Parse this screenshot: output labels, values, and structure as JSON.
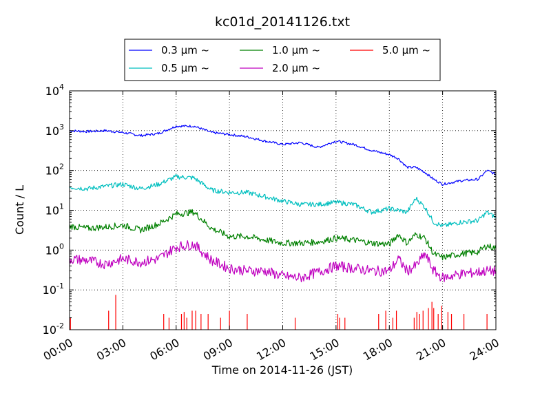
{
  "chart_data": {
    "type": "line",
    "title": "kc01d_20141126.txt",
    "xlabel": "Time on 2014-11-26 (JST)",
    "ylabel": "Count / L",
    "y_scale": "log",
    "ylim": [
      0.01,
      10000
    ],
    "xlim": [
      "00:00",
      "24:00"
    ],
    "grid": true,
    "legend_position": "top-center",
    "x_tick_labels": [
      "00:00",
      "03:00",
      "06:00",
      "09:00",
      "12:00",
      "15:00",
      "18:00",
      "21:00",
      "24:00"
    ],
    "y_tick_labels": [
      {
        "base": "10",
        "exp": "-2"
      },
      {
        "base": "10",
        "exp": "-1"
      },
      {
        "base": "10",
        "exp": "0"
      },
      {
        "base": "10",
        "exp": "1"
      },
      {
        "base": "10",
        "exp": "2"
      },
      {
        "base": "10",
        "exp": "3"
      },
      {
        "base": "10",
        "exp": "4"
      }
    ],
    "x_hours": [
      0,
      1,
      2,
      3,
      4,
      5,
      6,
      7,
      8,
      9,
      10,
      11,
      12,
      13,
      14,
      15,
      16,
      17,
      18,
      18.5,
      19,
      19.5,
      20,
      20.5,
      21,
      22,
      23,
      23.5,
      24
    ],
    "series": [
      {
        "name": "0.3 μm ~",
        "color": "#0000ff",
        "values": [
          1000,
          950,
          1000,
          900,
          750,
          850,
          1300,
          1300,
          900,
          800,
          700,
          550,
          450,
          500,
          380,
          550,
          450,
          320,
          250,
          200,
          120,
          120,
          90,
          60,
          45,
          55,
          60,
          100,
          80
        ]
      },
      {
        "name": "0.5 μm ~",
        "color": "#00bfbf",
        "values": [
          38,
          35,
          40,
          45,
          35,
          45,
          70,
          65,
          32,
          28,
          28,
          22,
          17,
          14,
          14,
          16,
          14,
          9,
          11,
          10,
          9,
          20,
          12,
          5,
          4,
          5,
          5.5,
          9,
          6.5
        ]
      },
      {
        "name": "1.0 μm ~",
        "color": "#008000",
        "values": [
          4,
          3.5,
          3.8,
          4.2,
          3.2,
          4.5,
          8,
          9,
          3.5,
          2.2,
          2.2,
          1.8,
          1.5,
          1.5,
          1.6,
          2,
          1.8,
          1.5,
          1.4,
          2.5,
          1.5,
          2.5,
          2,
          0.8,
          0.65,
          0.8,
          0.9,
          1.3,
          1.1
        ]
      },
      {
        "name": "2.0 μm ~",
        "color": "#bf00bf",
        "values": [
          0.6,
          0.55,
          0.45,
          0.6,
          0.5,
          0.6,
          1.2,
          1.4,
          0.55,
          0.35,
          0.3,
          0.3,
          0.22,
          0.2,
          0.28,
          0.4,
          0.35,
          0.3,
          0.3,
          0.6,
          0.3,
          0.4,
          0.8,
          0.3,
          0.2,
          0.25,
          0.28,
          0.3,
          0.3
        ]
      },
      {
        "name": "5.0 μm ~",
        "color": "#ff0000",
        "type": "spikes",
        "spikes": [
          [
            0.05,
            0.02
          ],
          [
            2.2,
            0.03
          ],
          [
            2.6,
            0.075
          ],
          [
            5.3,
            0.025
          ],
          [
            5.6,
            0.02
          ],
          [
            6.3,
            0.025
          ],
          [
            6.45,
            0.028
          ],
          [
            6.6,
            0.02
          ],
          [
            6.9,
            0.03
          ],
          [
            7.1,
            0.03
          ],
          [
            7.4,
            0.025
          ],
          [
            7.8,
            0.025
          ],
          [
            8.5,
            0.02
          ],
          [
            9.0,
            0.03
          ],
          [
            10.0,
            0.025
          ],
          [
            12.7,
            0.02
          ],
          [
            15.1,
            0.025
          ],
          [
            15.2,
            0.02
          ],
          [
            15.5,
            0.02
          ],
          [
            17.4,
            0.025
          ],
          [
            17.8,
            0.03
          ],
          [
            18.2,
            0.02
          ],
          [
            18.4,
            0.03
          ],
          [
            19.4,
            0.02
          ],
          [
            19.55,
            0.028
          ],
          [
            19.7,
            0.025
          ],
          [
            19.9,
            0.03
          ],
          [
            20.2,
            0.035
          ],
          [
            20.4,
            0.05
          ],
          [
            20.5,
            0.035
          ],
          [
            20.75,
            0.025
          ],
          [
            20.95,
            0.04
          ],
          [
            21.3,
            0.028
          ],
          [
            21.5,
            0.025
          ],
          [
            22.2,
            0.025
          ],
          [
            23.5,
            0.025
          ]
        ]
      }
    ]
  }
}
